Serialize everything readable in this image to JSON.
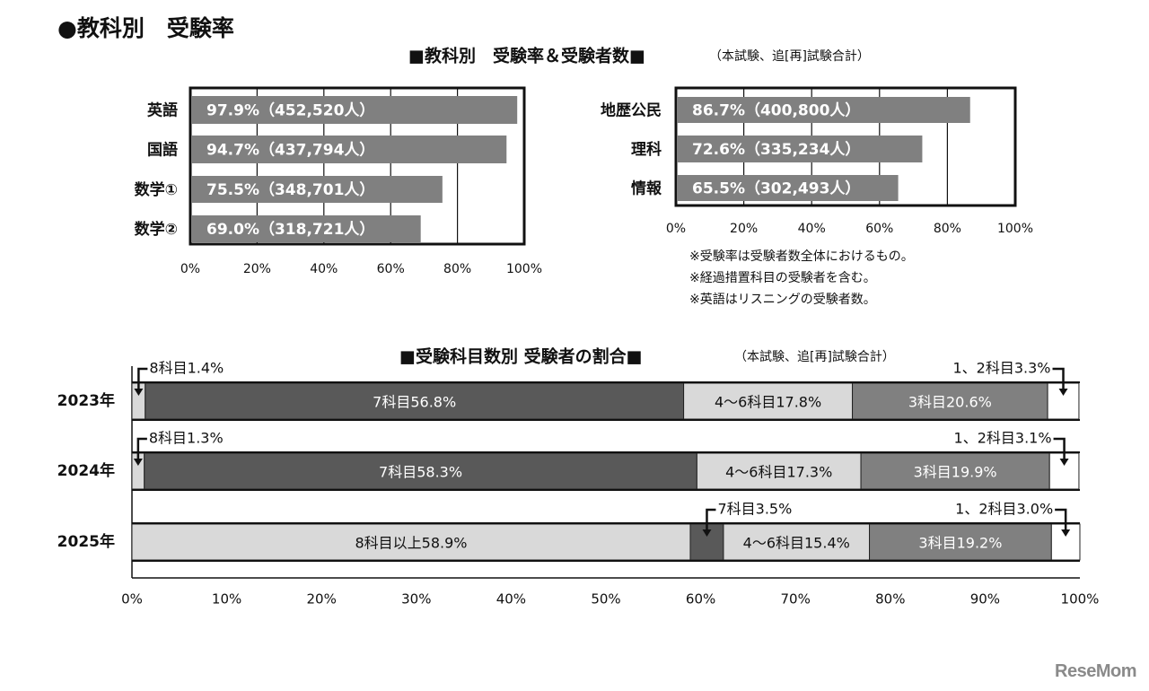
{
  "page_title": "●教科別　受験率",
  "logo": "ReseMom",
  "colors": {
    "bar": "#808080",
    "dark": "#595959",
    "light": "#d9d9d9",
    "mid": "#808080",
    "white": "#ffffff"
  },
  "chart_data": [
    {
      "type": "bar",
      "orientation": "horizontal",
      "title": "■教科別　受験率＆受験者数■",
      "subtitle": "（本試験、追[再]試験合計）",
      "categories": [
        "英語",
        "国語",
        "数学①",
        "数学②"
      ],
      "values": [
        97.9,
        94.7,
        75.5,
        69.0
      ],
      "counts": [
        "452,520",
        "437,794",
        "348,701",
        "318,721"
      ],
      "labels": [
        "97.9%（452,520人）",
        "94.7%（437,794人）",
        "75.5%（348,701人）",
        "69.0%（318,721人）"
      ],
      "xlim": [
        0,
        100
      ],
      "xticks": [
        "0%",
        "20%",
        "40%",
        "60%",
        "80%",
        "100%"
      ],
      "grid": true
    },
    {
      "type": "bar",
      "orientation": "horizontal",
      "categories": [
        "地歴公民",
        "理科",
        "情報"
      ],
      "values": [
        86.7,
        72.6,
        65.5
      ],
      "counts": [
        "400,800",
        "335,234",
        "302,493"
      ],
      "labels": [
        "86.7%（400,800人）",
        "72.6%（335,234人）",
        "65.5%（302,493人）"
      ],
      "xlim": [
        0,
        100
      ],
      "xticks": [
        "0%",
        "20%",
        "40%",
        "60%",
        "80%",
        "100%"
      ],
      "grid": true,
      "notes": [
        "※受験率は受験者数全体におけるもの。",
        "※経過措置科目の受験者を含む。",
        "※英語はリスニングの受験者数。"
      ]
    },
    {
      "type": "bar",
      "stacked": true,
      "orientation": "horizontal",
      "title": "■受験科目数別 受験者の割合■",
      "subtitle": "（本試験、追[再]試験合計）",
      "categories": [
        "2023年",
        "2024年",
        "2025年"
      ],
      "xlim": [
        0,
        100
      ],
      "xticks": [
        "0%",
        "10%",
        "20%",
        "30%",
        "40%",
        "50%",
        "60%",
        "70%",
        "80%",
        "90%",
        "100%"
      ],
      "rows": [
        {
          "segments": [
            {
              "name": "8科目",
              "value": 1.4,
              "color": "light",
              "label": "8科目1.4%",
              "callout": "left"
            },
            {
              "name": "7科目",
              "value": 56.8,
              "color": "dark",
              "label": "7科目56.8%"
            },
            {
              "name": "4〜6科目",
              "value": 17.8,
              "color": "light",
              "label": "4〜6科目17.8%"
            },
            {
              "name": "3科目",
              "value": 20.6,
              "color": "mid",
              "label": "3科目20.6%"
            },
            {
              "name": "1、2科目",
              "value": 3.3,
              "color": "white",
              "label": "1、2科目3.3%",
              "callout": "right"
            }
          ]
        },
        {
          "segments": [
            {
              "name": "8科目",
              "value": 1.3,
              "color": "light",
              "label": "8科目1.3%",
              "callout": "left"
            },
            {
              "name": "7科目",
              "value": 58.3,
              "color": "dark",
              "label": "7科目58.3%"
            },
            {
              "name": "4〜6科目",
              "value": 17.3,
              "color": "light",
              "label": "4〜6科目17.3%"
            },
            {
              "name": "3科目",
              "value": 19.9,
              "color": "mid",
              "label": "3科目19.9%"
            },
            {
              "name": "1、2科目",
              "value": 3.1,
              "color": "white",
              "label": "1、2科目3.1%",
              "callout": "right"
            }
          ]
        },
        {
          "segments": [
            {
              "name": "8科目以上",
              "value": 58.9,
              "color": "light",
              "label": "8科目以上58.9%"
            },
            {
              "name": "7科目",
              "value": 3.5,
              "color": "dark",
              "label": "7科目3.5%",
              "callout": "left"
            },
            {
              "name": "4〜6科目",
              "value": 15.4,
              "color": "light",
              "label": "4〜6科目15.4%"
            },
            {
              "name": "3科目",
              "value": 19.2,
              "color": "mid",
              "label": "3科目19.2%"
            },
            {
              "name": "1、2科目",
              "value": 3.0,
              "color": "white",
              "label": "1、2科目3.0%",
              "callout": "right"
            }
          ]
        }
      ]
    }
  ]
}
